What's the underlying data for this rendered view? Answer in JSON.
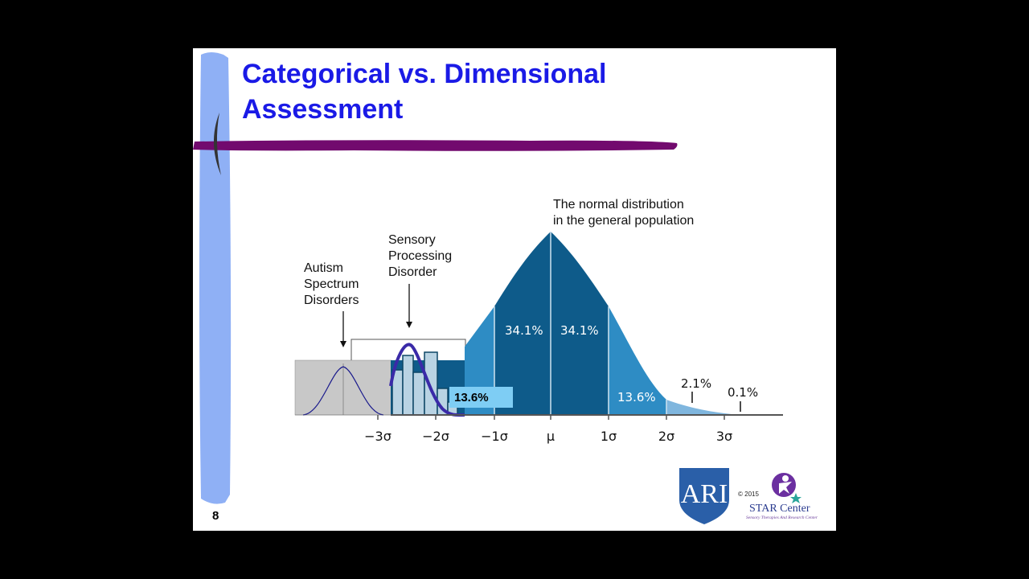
{
  "slide": {
    "title_line1": "Categorical vs. Dimensional",
    "title_line2": "Assessment",
    "number": "8"
  },
  "diagram": {
    "labels": {
      "normal_line1": "The normal distribution",
      "normal_line2": "in the general population",
      "spd_line1": "Sensory",
      "spd_line2": "Processing",
      "spd_line3": "Disorder",
      "asd_line1": "Autism",
      "asd_line2": "Spectrum",
      "asd_line3": "Disorders"
    },
    "axis_ticks": [
      "−3σ",
      "−2σ",
      "−1σ",
      "μ",
      "1σ",
      "2σ",
      "3σ"
    ],
    "percentages": {
      "left_center": "34.1%",
      "right_center": "34.1%",
      "right_mid": "13.6%",
      "right_tail": "2.1%",
      "far_right_tail": "0.1%",
      "left_mid_callout": "13.6%"
    },
    "colors": {
      "center": "#0e5b8a",
      "mid": "#2e8cc4",
      "tail": "#7fb6de",
      "callout": "#7ecdf4",
      "spd_curve": "#3a2aa8",
      "asd_box": "#c8c8c8"
    }
  },
  "logos": {
    "ari_text": "ARI",
    "copyright": "© 2015",
    "star_name": "STAR Center",
    "star_sub": "Sensory Therapies And Research Center"
  }
}
